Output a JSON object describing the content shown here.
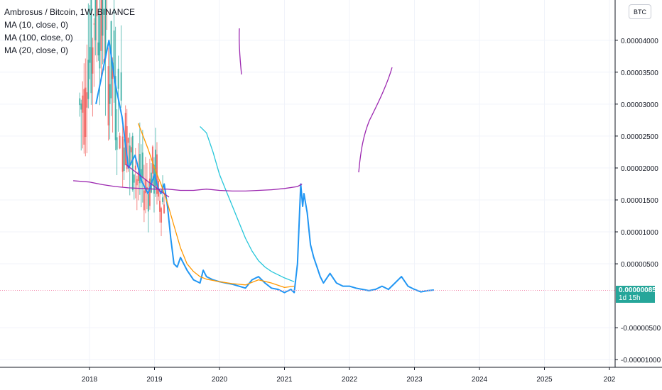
{
  "legend": {
    "title": "Ambrosus / Bitcoin, 1W, BINANCE",
    "indicators": [
      "MA (10, close, 0)",
      "MA (100, close, 0)",
      "MA (20, close, 0)"
    ]
  },
  "currency_button": "BTC",
  "current_price": {
    "value": "0.00000085",
    "countdown": "1d 15h"
  },
  "colors": {
    "price": "#2196f3",
    "ma10": "#26c6da",
    "ma100": "#9c27b0",
    "ma20": "#ff9800",
    "bull": "#26a69a",
    "bear": "#ef5350",
    "price_line": "#f48fb1"
  },
  "chart_data": {
    "type": "line",
    "x_ticks": [
      "2018",
      "2019",
      "2020",
      "2021",
      "2022",
      "2023",
      "2024",
      "2025",
      "202"
    ],
    "y_ticks": [
      "0.00004000",
      "0.00003500",
      "0.00003000",
      "0.00002500",
      "0.00002000",
      "0.00001500",
      "0.00001000",
      "0.00000500",
      "-0.00000500",
      "-0.00001000"
    ],
    "ylim": [
      -1.12e-05,
      4.63e-05
    ],
    "series": [
      {
        "x": [
          2018.1,
          2018.2,
          2018.3,
          2018.4,
          2018.5,
          2018.6,
          2018.7,
          2018.8,
          2018.9,
          2019.0,
          2019.05,
          2019.1,
          2019.15,
          2019.2,
          2019.25,
          2019.3,
          2019.35,
          2019.4,
          2019.5,
          2019.6,
          2019.7,
          2019.75,
          2019.8,
          2019.9,
          2020.0,
          2020.1,
          2020.2,
          2020.3,
          2020.4,
          2020.5,
          2020.6,
          2020.7,
          2020.8,
          2020.9,
          2021.0,
          2021.1,
          2021.15,
          2021.2,
          2021.25,
          2021.28,
          2021.3,
          2021.35,
          2021.4,
          2021.45,
          2021.5,
          2021.55,
          2021.6,
          2021.7,
          2021.8,
          2021.9,
          2022.0,
          2022.1,
          2022.2,
          2022.3,
          2022.4,
          2022.5,
          2022.6,
          2022.7,
          2022.8,
          2022.9,
          2023.0,
          2023.1,
          2023.2,
          2023.3
        ],
        "y": [
          3e-05,
          3.5e-05,
          4e-05,
          3.3e-05,
          2.8e-05,
          2e-05,
          2.2e-05,
          1.8e-05,
          1.6e-05,
          1.9e-05,
          1.7e-05,
          1.6e-05,
          1.75e-05,
          1.4e-05,
          9e-06,
          5e-06,
          4.5e-06,
          6e-06,
          4e-06,
          2.5e-06,
          2e-06,
          4e-06,
          3e-06,
          2.5e-06,
          2.2e-06,
          2e-06,
          1.8e-06,
          1.5e-06,
          1.2e-06,
          2.5e-06,
          3e-06,
          2e-06,
          1.2e-06,
          1e-06,
          5e-07,
          1e-06,
          5e-07,
          5e-06,
          1.75e-05,
          1.4e-05,
          1.6e-05,
          1.3e-05,
          8e-06,
          6e-06,
          4.5e-06,
          3e-06,
          2e-06,
          3.5e-06,
          2e-06,
          1.5e-06,
          1.5e-06,
          1.2e-06,
          1e-06,
          8e-07,
          1e-06,
          1.5e-06,
          1e-06,
          2e-06,
          3e-06,
          1.5e-06,
          1e-06,
          6e-07,
          8e-07,
          9e-07
        ]
      },
      {
        "x": [
          2019.7,
          2019.8,
          2019.9,
          2020.0,
          2020.1,
          2020.2,
          2020.3,
          2020.4,
          2020.5,
          2020.6,
          2020.7,
          2020.8,
          2020.9,
          2021.0,
          2021.15
        ],
        "y": [
          2.65e-05,
          2.55e-05,
          2.25e-05,
          1.9e-05,
          1.65e-05,
          1.4e-05,
          1.15e-05,
          9e-06,
          7e-06,
          5.5e-06,
          4.5e-06,
          3.8e-06,
          3.3e-06,
          2.8e-06,
          2.2e-06
        ]
      },
      {
        "x": [
          2017.75,
          2018.0,
          2018.2,
          2018.4,
          2018.6,
          2018.8,
          2019.0,
          2019.2,
          2019.4,
          2019.6,
          2019.8,
          2020.0,
          2020.2,
          2020.4,
          2020.6,
          2020.8,
          2021.0,
          2021.2,
          2021.27
        ],
        "y": [
          1.8e-05,
          1.78e-05,
          1.74e-05,
          1.71e-05,
          1.69e-05,
          1.68e-05,
          1.67e-05,
          1.67e-05,
          1.65e-05,
          1.65e-05,
          1.67e-05,
          1.65e-05,
          1.64e-05,
          1.64e-05,
          1.65e-05,
          1.66e-05,
          1.68e-05,
          1.71e-05,
          1.75e-05
        ]
      },
      {
        "x": [
          2018.75,
          2018.9,
          2019.0,
          2019.1,
          2019.2,
          2019.3,
          2019.4,
          2019.5,
          2019.6,
          2019.7,
          2019.8,
          2019.9,
          2020.0,
          2020.2,
          2020.4,
          2020.6,
          2020.8,
          2021.0,
          2021.15
        ],
        "y": [
          2.7e-05,
          2.3e-05,
          2e-05,
          1.75e-05,
          1.45e-05,
          1.1e-05,
          7.5e-06,
          5e-06,
          3.8e-06,
          3e-06,
          2.6e-06,
          2.4e-06,
          2.2e-06,
          1.9e-06,
          1.7e-06,
          2.5e-06,
          2e-06,
          1.3e-06,
          1.5e-06
        ]
      }
    ]
  }
}
